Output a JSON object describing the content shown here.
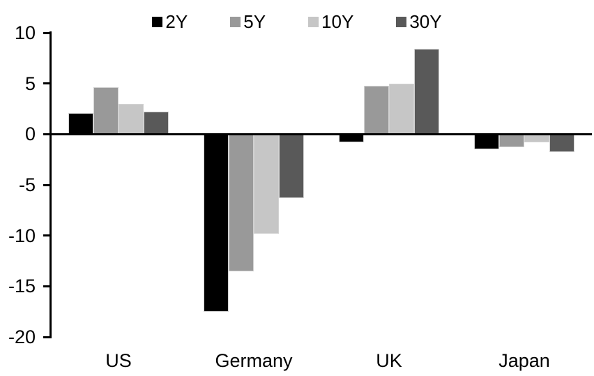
{
  "chart_data": {
    "type": "bar",
    "title": "",
    "categories": [
      "US",
      "Germany",
      "UK",
      "Japan"
    ],
    "series": [
      {
        "name": "2Y",
        "color": "#000000",
        "values": [
          2.1,
          -17.5,
          -0.8,
          -1.5
        ]
      },
      {
        "name": "5Y",
        "color": "#999999",
        "values": [
          4.6,
          -13.5,
          4.8,
          -1.3
        ]
      },
      {
        "name": "10Y",
        "color": "#c6c6c6",
        "values": [
          3.0,
          -9.8,
          5.0,
          -0.8
        ]
      },
      {
        "name": "30Y",
        "color": "#595959",
        "values": [
          2.2,
          -6.3,
          8.4,
          -1.8
        ]
      }
    ],
    "xlabel": "",
    "ylabel": "",
    "ylim": [
      -20,
      10
    ],
    "yticks": [
      10,
      5,
      0,
      -5,
      -10,
      -15,
      -20
    ],
    "legend_position": "top-center",
    "grid": false,
    "axis_color": "#000000",
    "text_color": "#000000",
    "background": "#ffffff"
  }
}
